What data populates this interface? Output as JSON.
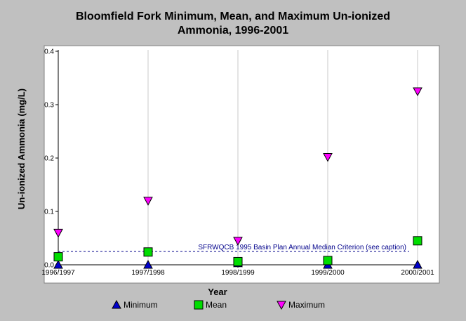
{
  "chart_data": {
    "type": "scatter",
    "title_lines": [
      "Bloomfield Fork Minimum, Mean, and Maximum Un-ionized",
      "Ammonia, 1996-2001"
    ],
    "xlabel": "Year",
    "ylabel": "Un-ionized Ammonia (mg/L)",
    "categories": [
      "1996/1997",
      "1997/1998",
      "1998/1999",
      "1999/2000",
      "2000/2001"
    ],
    "ylim": [
      0,
      0.4
    ],
    "yticks": [
      "0.0",
      "0.1",
      "0.2",
      "0.3",
      "0.4"
    ],
    "ytick_values": [
      0,
      0.1,
      0.2,
      0.3,
      0.4
    ],
    "grid": "vertical",
    "legend_placement": "bottom",
    "series": [
      {
        "name": "Minimum",
        "marker": "triangle-up",
        "color": "#0000cc",
        "values": [
          0.0,
          0.0,
          0.003,
          0.0,
          0.0
        ]
      },
      {
        "name": "Mean",
        "marker": "square",
        "color": "#00dd00",
        "values": [
          0.015,
          0.024,
          0.006,
          0.008,
          0.045
        ]
      },
      {
        "name": "Maximum",
        "marker": "triangle-down",
        "color": "#ff00ff",
        "values": [
          0.06,
          0.12,
          0.045,
          0.202,
          0.325
        ]
      }
    ],
    "reference_line": {
      "value": 0.025,
      "label": "SFRWQCB 1995 Basin Plan Annual Median Criterion (see caption)",
      "color": "#00008b"
    }
  }
}
